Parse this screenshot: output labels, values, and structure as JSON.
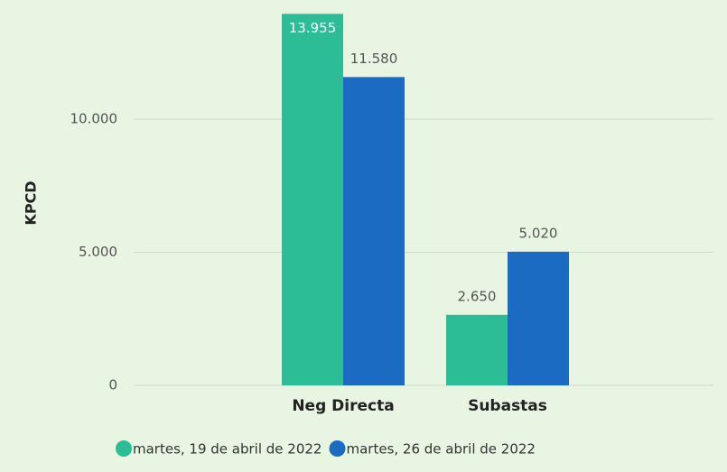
{
  "chart_data": {
    "type": "bar",
    "y_label": "KPCD",
    "categories": [
      "Neg Directa",
      "Subastas"
    ],
    "series": [
      {
        "name": "martes, 19 de abril de 2022",
        "color": "#2dbd96",
        "values": [
          13955,
          2650
        ],
        "value_labels": [
          "13.955",
          "2.650"
        ]
      },
      {
        "name": "martes, 26 de abril de 2022",
        "color": "#1a6bc1",
        "values": [
          11580,
          5020
        ],
        "value_labels": [
          "11.580",
          "5.020"
        ]
      }
    ],
    "ylim": [
      0,
      14000
    ],
    "yticks": [
      {
        "value": 0,
        "label": "0"
      },
      {
        "value": 5000,
        "label": "5.000"
      },
      {
        "value": 10000,
        "label": "10.000"
      }
    ],
    "grid": true,
    "legend": "bottom"
  }
}
